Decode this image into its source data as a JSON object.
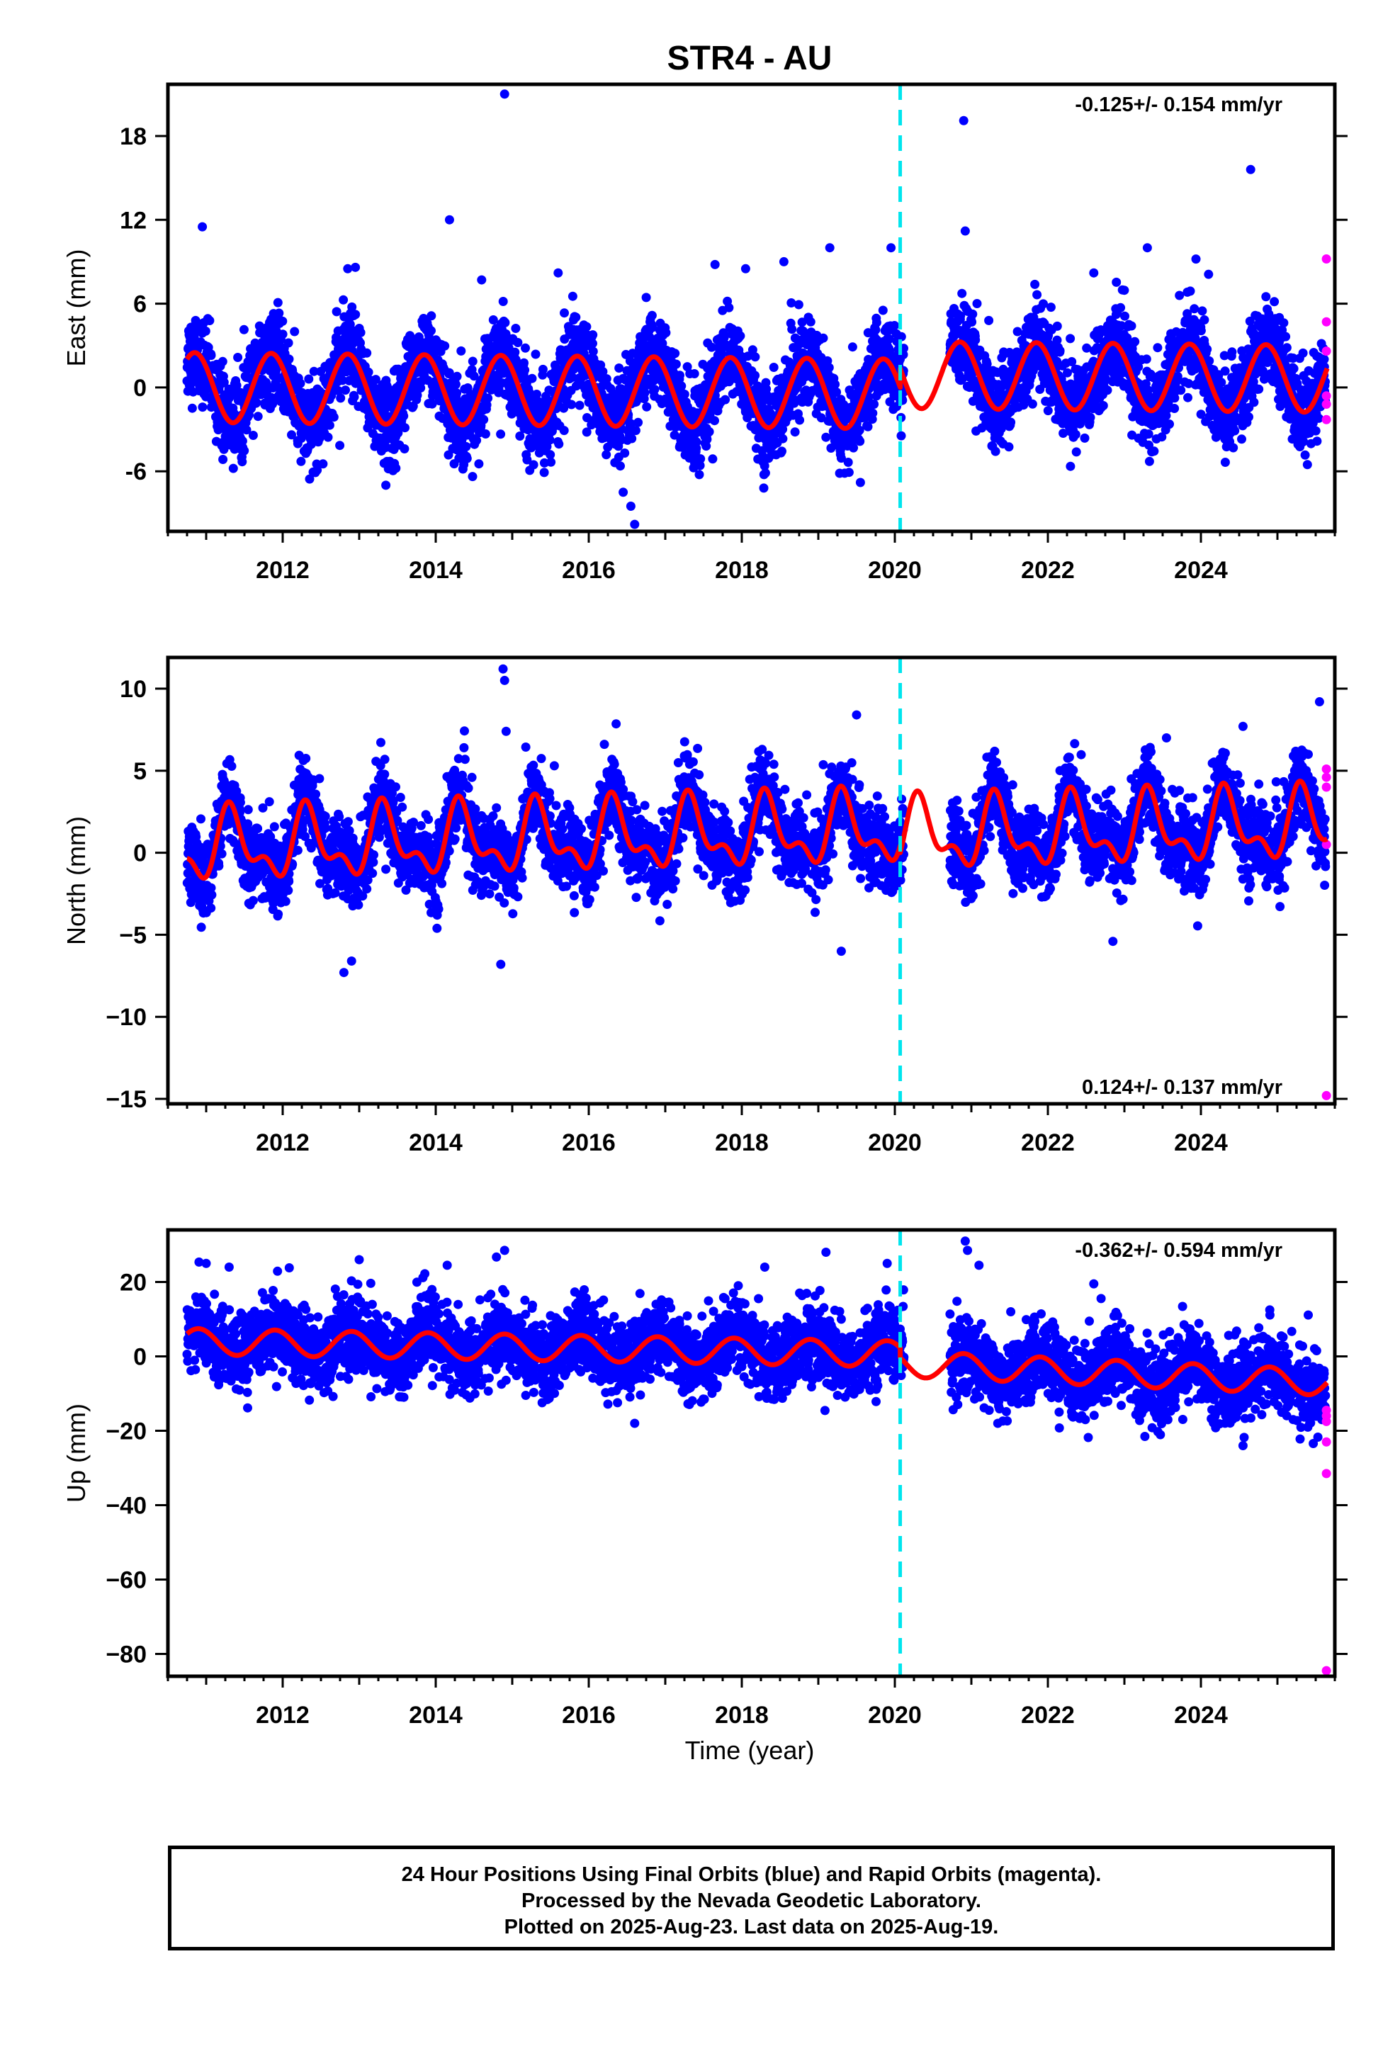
{
  "colors": {
    "final_orbits": "#0000ff",
    "rapid_orbits": "#ff00ff",
    "model_fit": "#ff0000",
    "offset_marker": "#00e5ee",
    "frame": "#000000"
  },
  "chart_data": {
    "title": "STR4 - AU",
    "type": "scatter",
    "xlabel": "Time (year)",
    "xlim": [
      2010.5,
      2025.75
    ],
    "x_ticks": [
      "2012",
      "2014",
      "2016",
      "2018",
      "2020",
      "2022",
      "2024"
    ],
    "grid": false,
    "equipment_change_epoch": 2020.07,
    "data_start": 2010.75,
    "data_end": 2025.63,
    "rapid_orbits_start": 2025.6,
    "panels": [
      {
        "name": "East",
        "ylabel": "East (mm)",
        "ylim": [
          -10.3,
          21.7
        ],
        "y_ticks": [
          {
            "v": 18,
            "label": "18"
          },
          {
            "v": 12,
            "label": "12"
          },
          {
            "v": 6,
            "label": "6"
          },
          {
            "v": 0,
            "label": "0"
          },
          {
            "v": -6,
            "label": "-6"
          }
        ],
        "rate": "-0.125+/- 0.154 mm/yr",
        "rate_position": "top-right",
        "seasonal": [
          {
            "from": 2010.75,
            "to": 2020.07,
            "intercept": 0.0,
            "slope": -0.05,
            "amplitude": 2.5,
            "phase": 0.85,
            "semi_amplitude": 0.0,
            "semi_phase": 0.0
          },
          {
            "from": 2020.07,
            "to": 2025.65,
            "intercept": 0.9,
            "slope": -0.05,
            "amplitude": 2.4,
            "phase": 0.85,
            "semi_amplitude": 0.0,
            "semi_phase": 0.0
          }
        ],
        "noise_sd": 1.5,
        "outliers": [
          {
            "x": 2010.95,
            "y": 11.5
          },
          {
            "x": 2012.85,
            "y": 8.5
          },
          {
            "x": 2012.95,
            "y": 8.6
          },
          {
            "x": 2014.18,
            "y": 12.0
          },
          {
            "x": 2014.6,
            "y": 7.7
          },
          {
            "x": 2014.9,
            "y": 21.0
          },
          {
            "x": 2015.6,
            "y": 8.2
          },
          {
            "x": 2016.45,
            "y": -7.5
          },
          {
            "x": 2016.55,
            "y": -8.5
          },
          {
            "x": 2016.6,
            "y": -9.8
          },
          {
            "x": 2017.65,
            "y": 8.8
          },
          {
            "x": 2018.05,
            "y": 8.5
          },
          {
            "x": 2018.55,
            "y": 9.0
          },
          {
            "x": 2019.15,
            "y": 10.0
          },
          {
            "x": 2019.55,
            "y": -6.8
          },
          {
            "x": 2019.95,
            "y": 10.0
          },
          {
            "x": 2020.9,
            "y": 19.1
          },
          {
            "x": 2020.92,
            "y": 11.2
          },
          {
            "x": 2022.6,
            "y": 8.2
          },
          {
            "x": 2023.3,
            "y": 10.0
          },
          {
            "x": 2024.1,
            "y": 8.1
          },
          {
            "x": 2024.65,
            "y": 15.6
          },
          {
            "x": 2024.85,
            "y": 6.5
          }
        ],
        "rapid": [
          {
            "x": 2025.64,
            "y": 9.2
          },
          {
            "x": 2025.64,
            "y": 4.7
          },
          {
            "x": 2025.64,
            "y": 2.6
          },
          {
            "x": 2025.64,
            "y": -0.6
          },
          {
            "x": 2025.64,
            "y": -1.2
          },
          {
            "x": 2025.64,
            "y": -2.3
          }
        ]
      },
      {
        "name": "North",
        "ylabel": "North (mm)",
        "ylim": [
          -15.3,
          11.9
        ],
        "y_ticks": [
          {
            "v": 10,
            "label": "10"
          },
          {
            "v": 5,
            "label": "5"
          },
          {
            "v": 0,
            "label": "0"
          },
          {
            "v": -5,
            "label": "−5"
          },
          {
            "v": -10,
            "label": "−10"
          },
          {
            "v": -15,
            "label": "−15"
          }
        ],
        "rate": "0.124+/- 0.137 mm/yr",
        "rate_position": "bottom-right",
        "seasonal": [
          {
            "from": 2010.75,
            "to": 2020.07,
            "intercept": 0.3,
            "slope": 0.12,
            "amplitude": 1.8,
            "phase": 0.33,
            "semi_amplitude": 1.0,
            "semi_phase": 0.28
          },
          {
            "from": 2020.07,
            "to": 2025.65,
            "intercept": 1.0,
            "slope": 0.12,
            "amplitude": 1.8,
            "phase": 0.33,
            "semi_amplitude": 1.0,
            "semi_phase": 0.28
          }
        ],
        "noise_sd": 1.2,
        "outliers": [
          {
            "x": 2012.8,
            "y": -7.3
          },
          {
            "x": 2012.9,
            "y": -6.6
          },
          {
            "x": 2014.88,
            "y": 11.2
          },
          {
            "x": 2014.9,
            "y": 10.5
          },
          {
            "x": 2014.92,
            "y": 7.4
          },
          {
            "x": 2014.85,
            "y": -6.8
          },
          {
            "x": 2015.55,
            "y": 5.3
          },
          {
            "x": 2019.3,
            "y": -6.0
          },
          {
            "x": 2019.5,
            "y": 8.4
          },
          {
            "x": 2022.85,
            "y": -5.4
          },
          {
            "x": 2023.55,
            "y": 7.0
          },
          {
            "x": 2024.55,
            "y": 7.7
          },
          {
            "x": 2025.55,
            "y": 9.2
          }
        ],
        "rapid": [
          {
            "x": 2025.64,
            "y": 5.1
          },
          {
            "x": 2025.64,
            "y": 4.6
          },
          {
            "x": 2025.64,
            "y": 4.0
          },
          {
            "x": 2025.64,
            "y": 0.5
          },
          {
            "x": 2025.64,
            "y": -14.8
          }
        ]
      },
      {
        "name": "Up",
        "ylabel": "Up (mm)",
        "ylim": [
          -86,
          34
        ],
        "y_ticks": [
          {
            "v": 20,
            "label": "20"
          },
          {
            "v": 0,
            "label": "0"
          },
          {
            "v": -20,
            "label": "−20"
          },
          {
            "v": -40,
            "label": "−40"
          },
          {
            "v": -60,
            "label": "−60"
          },
          {
            "v": -80,
            "label": "−80"
          }
        ],
        "rate": "-0.362+/- 0.594 mm/yr",
        "rate_position": "top-right",
        "seasonal": [
          {
            "from": 2010.75,
            "to": 2020.07,
            "intercept": 4.0,
            "slope": -0.36,
            "amplitude": 3.5,
            "phase": 0.9,
            "semi_amplitude": 0.0,
            "semi_phase": 0.0
          },
          {
            "from": 2020.07,
            "to": 2025.65,
            "intercept": -2.0,
            "slope": -0.9,
            "amplitude": 3.5,
            "phase": 0.9,
            "semi_amplitude": 0.0,
            "semi_phase": 0.0
          }
        ],
        "noise_sd": 5.0,
        "outliers": [
          {
            "x": 2011.0,
            "y": 25.0
          },
          {
            "x": 2011.3,
            "y": 24.0
          },
          {
            "x": 2013.0,
            "y": 26.0
          },
          {
            "x": 2014.15,
            "y": 24.5
          },
          {
            "x": 2014.9,
            "y": 28.5
          },
          {
            "x": 2016.6,
            "y": -18.0
          },
          {
            "x": 2018.3,
            "y": 24.0
          },
          {
            "x": 2019.1,
            "y": 28.0
          },
          {
            "x": 2019.9,
            "y": 25.0
          },
          {
            "x": 2020.92,
            "y": 31.0
          },
          {
            "x": 2020.95,
            "y": 28.5
          },
          {
            "x": 2021.1,
            "y": 24.5
          },
          {
            "x": 2022.6,
            "y": 19.5
          },
          {
            "x": 2024.55,
            "y": -24.0
          },
          {
            "x": 2024.9,
            "y": 12.5
          }
        ],
        "rapid": [
          {
            "x": 2025.64,
            "y": -14.5
          },
          {
            "x": 2025.64,
            "y": -16.0
          },
          {
            "x": 2025.64,
            "y": -17.5
          },
          {
            "x": 2025.64,
            "y": -23.0
          },
          {
            "x": 2025.64,
            "y": -31.5
          },
          {
            "x": 2025.64,
            "y": -84.5
          }
        ]
      }
    ]
  },
  "caption": {
    "line1": "24 Hour Positions Using Final Orbits (blue) and Rapid Orbits (magenta).",
    "line2": "Processed by the Nevada Geodetic Laboratory.",
    "line3": "Plotted on 2025-Aug-23. Last data on 2025-Aug-19."
  }
}
